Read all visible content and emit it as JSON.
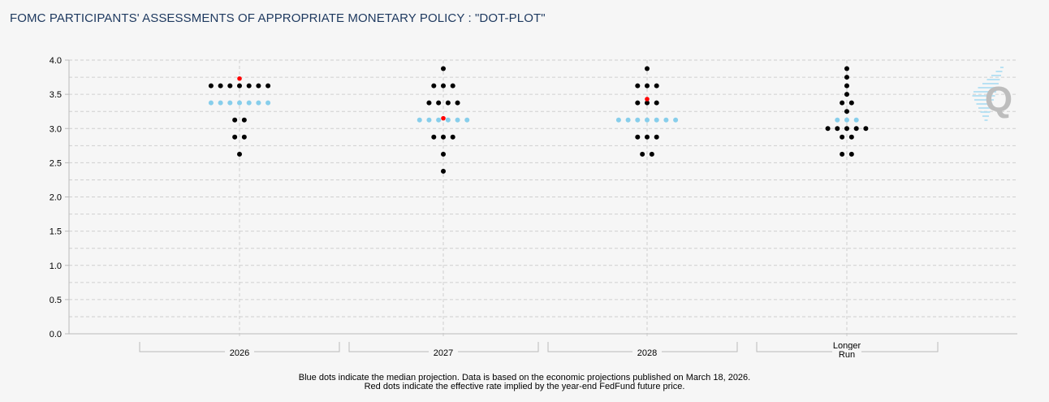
{
  "title": "FOMC PARTICIPANTS' ASSESSMENTS OF APPROPRIATE MONETARY POLICY : \"DOT-PLOT\"",
  "chart_data": {
    "type": "scatter",
    "title": "FOMC PARTICIPANTS' ASSESSMENTS OF APPROPRIATE MONETARY POLICY : \"DOT-PLOT\"",
    "ylim": [
      0,
      4.0
    ],
    "y_ticks": [
      "0.0",
      "0.5",
      "1.0",
      "1.5",
      "2.0",
      "2.5",
      "3.0",
      "3.5",
      "4.0"
    ],
    "grid": true,
    "categories": [
      "2026",
      "2027",
      "2028",
      "Longer Run"
    ],
    "category_labels": [
      [
        "2026"
      ],
      [
        "2027"
      ],
      [
        "2028"
      ],
      [
        "Longer",
        "Run"
      ]
    ],
    "colors": {
      "participant": "#000000",
      "median": "#87ceeb",
      "futures": "#ff0000"
    },
    "dots": [
      [
        {
          "rate": 3.625,
          "count": 7
        },
        {
          "rate": 3.375,
          "count": 7,
          "median": true
        },
        {
          "rate": 3.125,
          "count": 2
        },
        {
          "rate": 2.875,
          "count": 2
        },
        {
          "rate": 2.625,
          "count": 1
        }
      ],
      [
        {
          "rate": 3.875,
          "count": 1
        },
        {
          "rate": 3.625,
          "count": 3
        },
        {
          "rate": 3.375,
          "count": 4
        },
        {
          "rate": 3.125,
          "count": 6,
          "median": true
        },
        {
          "rate": 2.875,
          "count": 3
        },
        {
          "rate": 2.625,
          "count": 1
        },
        {
          "rate": 2.375,
          "count": 1
        }
      ],
      [
        {
          "rate": 3.875,
          "count": 1
        },
        {
          "rate": 3.625,
          "count": 3
        },
        {
          "rate": 3.375,
          "count": 3
        },
        {
          "rate": 3.125,
          "count": 7,
          "median": true
        },
        {
          "rate": 2.875,
          "count": 3
        },
        {
          "rate": 2.625,
          "count": 2
        }
      ],
      [
        {
          "rate": 3.875,
          "count": 1
        },
        {
          "rate": 3.75,
          "count": 1
        },
        {
          "rate": 3.625,
          "count": 1
        },
        {
          "rate": 3.5,
          "count": 1
        },
        {
          "rate": 3.375,
          "count": 2
        },
        {
          "rate": 3.25,
          "count": 1
        },
        {
          "rate": 3.125,
          "count": 3,
          "median": true
        },
        {
          "rate": 3.0,
          "count": 5
        },
        {
          "rate": 2.875,
          "count": 2
        },
        {
          "rate": 2.625,
          "count": 2
        }
      ]
    ],
    "futures_implied": [
      3.73,
      3.15,
      3.43,
      null
    ]
  },
  "footnote": {
    "line1": "Blue dots indicate the median projection. Data is based on the economic projections published on March 18, 2026.",
    "line2": "Red dots indicate the effective rate implied by the year-end FedFund future price."
  },
  "watermark": "Q"
}
